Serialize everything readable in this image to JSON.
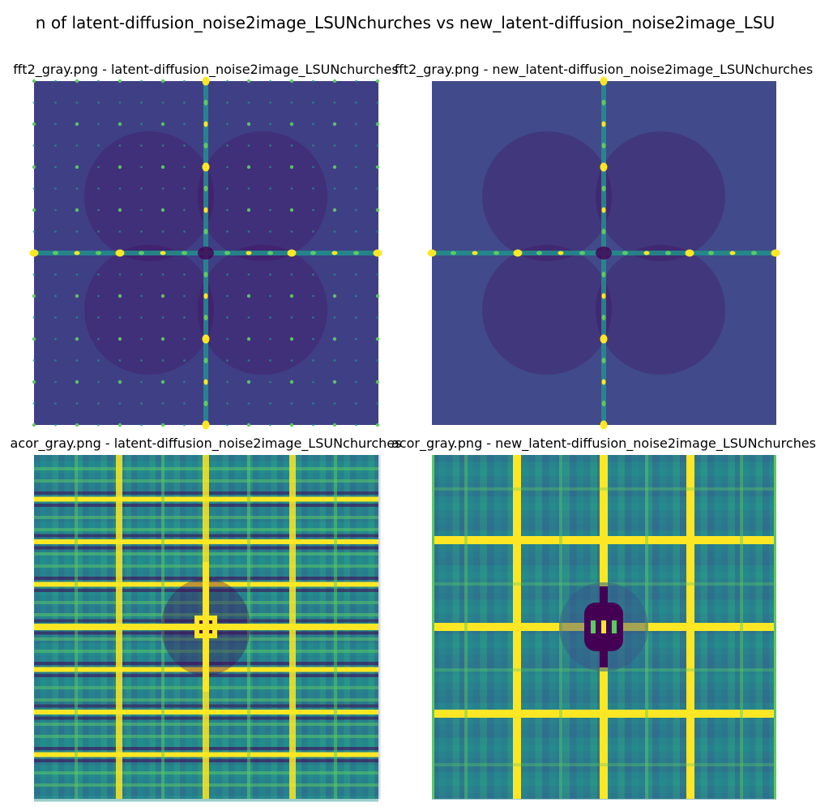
{
  "suptitle": "n of latent-diffusion_noise2image_LSUNchurches vs new_latent-diffusion_noise2image_LSU",
  "colors": {
    "viridis_dark": "#440154",
    "viridis_low": "#3b528b",
    "viridis_mid": "#21918c",
    "viridis_green": "#5ec962",
    "viridis_yellow": "#fde725"
  },
  "panels": [
    {
      "title": "fft2_gray.png - latent-diffusion_noise2image_LSUNchurches",
      "kind": "fft",
      "background": "#3f3f86",
      "variant": "dense-grid"
    },
    {
      "title": "fft2_gray.png - new_latent-diffusion_noise2image_LSUNchurches",
      "kind": "fft",
      "background": "#414a8a",
      "variant": "cross-only"
    },
    {
      "title": "acor_gray.png - latent-diffusion_noise2image_LSUNchurches",
      "kind": "acor",
      "background": "#26858e",
      "variant": "dense-stripes"
    },
    {
      "title": "acor_gray.png - new_latent-diffusion_noise2image_LSUNchurches",
      "kind": "acor",
      "background": "#2d7c8e",
      "variant": "sparse-grid"
    }
  ]
}
